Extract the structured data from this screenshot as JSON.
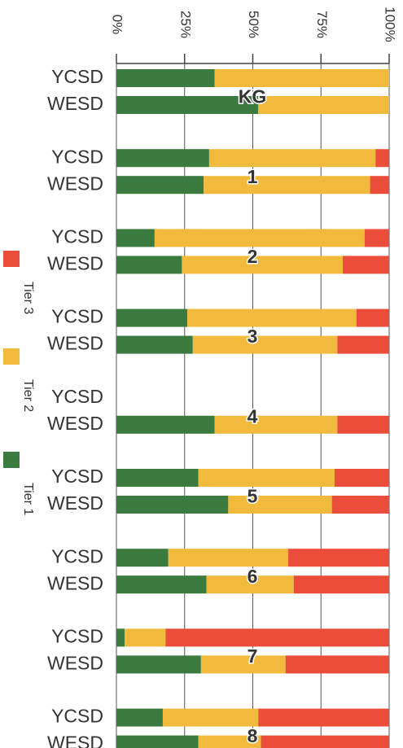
{
  "chart_data": {
    "type": "stacked_barh",
    "categories": [
      "YCSD",
      "WESD",
      "YCSD",
      "WESD",
      "YCSD",
      "WESD",
      "YCSD",
      "WESD",
      "YCSD",
      "WESD",
      "YCSD",
      "WESD",
      "YCSD",
      "WESD",
      "YCSD",
      "WESD",
      "YCSD",
      "WESD"
    ],
    "groups": [
      "KG",
      "1",
      "2",
      "3",
      "4",
      "5",
      "6",
      "7",
      "8"
    ],
    "series": [
      {
        "name": "Tier 1",
        "color": "#3b7b3f",
        "values": [
          36,
          52,
          34,
          32,
          14,
          24,
          26,
          28,
          0,
          36,
          30,
          41,
          19,
          33,
          3,
          31,
          17,
          30
        ]
      },
      {
        "name": "Tier 2",
        "color": "#f1ba3c",
        "values": [
          64,
          48,
          61,
          61,
          77,
          59,
          62,
          53,
          0,
          45,
          50,
          38,
          44,
          32,
          15,
          31,
          35,
          23
        ]
      },
      {
        "name": "Tier 3",
        "color": "#ea4e3b",
        "values": [
          0,
          0,
          5,
          7,
          9,
          17,
          12,
          19,
          0,
          19,
          20,
          21,
          37,
          35,
          82,
          38,
          48,
          47
        ]
      }
    ],
    "xlim": [
      0,
      100
    ],
    "xticks": [
      {
        "value": 0,
        "label": "0%"
      },
      {
        "value": 25,
        "label": "25%"
      },
      {
        "value": 50,
        "label": "50%"
      },
      {
        "value": 75,
        "label": "75%"
      },
      {
        "value": 100,
        "label": "100%"
      }
    ],
    "grid": true
  }
}
